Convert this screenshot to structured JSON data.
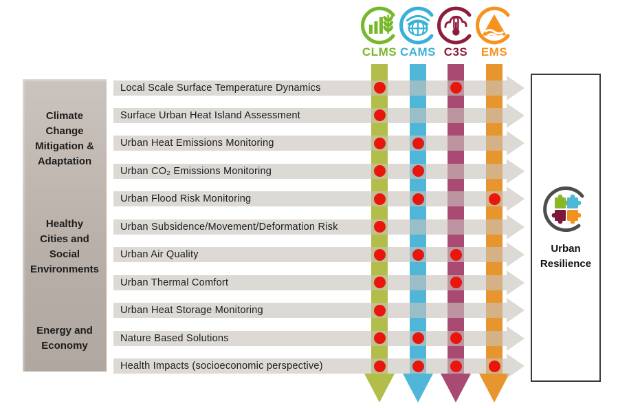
{
  "services": [
    {
      "id": "CLMS",
      "label": "CLMS",
      "icon": "clms-land-monitoring-icon",
      "label_color": "#76b82a",
      "bar_color": "#b3bd4a"
    },
    {
      "id": "CAMS",
      "label": "CAMS",
      "icon": "cams-atmosphere-monitoring-icon",
      "label_color": "#38b1d8",
      "bar_color": "#4fb6d8"
    },
    {
      "id": "C3S",
      "label": "C3S",
      "icon": "c3s-climate-change-icon",
      "label_color": "#8e1c3c",
      "bar_color": "#a84a71"
    },
    {
      "id": "EMS",
      "label": "EMS",
      "icon": "ems-emergency-management-icon",
      "label_color": "#f6921e",
      "bar_color": "#e6952f"
    }
  ],
  "sidebar": {
    "groups": [
      {
        "label": "Climate\nChange\nMitigation &\nAdaptation"
      },
      {
        "label": "Healthy\nCities and\nSocial\nEnvironments"
      },
      {
        "label": "Energy and\nEconomy"
      }
    ]
  },
  "rows": [
    {
      "label": "Local Scale Surface Temperature Dynamics",
      "services": [
        "CLMS",
        "C3S"
      ]
    },
    {
      "label": "Surface Urban Heat Island Assessment",
      "services": [
        "CLMS"
      ]
    },
    {
      "label": "Urban Heat Emissions Monitoring",
      "services": [
        "CLMS",
        "CAMS"
      ]
    },
    {
      "label": "Urban CO₂ Emissions Monitoring",
      "services": [
        "CLMS",
        "CAMS"
      ]
    },
    {
      "label": "Urban Flood Risk Monitoring",
      "services": [
        "CLMS",
        "CAMS",
        "EMS"
      ]
    },
    {
      "label": "Urban Subsidence/Movement/Deformation Risk",
      "services": [
        "CLMS"
      ]
    },
    {
      "label": "Urban Air Quality",
      "services": [
        "CLMS",
        "CAMS",
        "C3S"
      ]
    },
    {
      "label": "Urban Thermal Comfort",
      "services": [
        "CLMS",
        "C3S"
      ]
    },
    {
      "label": "Urban Heat Storage Monitoring",
      "services": [
        "CLMS"
      ]
    },
    {
      "label": "Nature Based Solutions",
      "services": [
        "CLMS",
        "CAMS",
        "C3S"
      ]
    },
    {
      "label": "Health Impacts (socioeconomic perspective)",
      "services": [
        "CLMS",
        "CAMS",
        "C3S",
        "EMS"
      ]
    }
  ],
  "outcome": {
    "label": "Urban\nResilience",
    "icon": "urban-resilience-puzzle-icon"
  },
  "colors": {
    "dot_red": "#e8160d",
    "arrow_gray": "#dedad6",
    "sidebar_taupe": "#bcb3ac",
    "crescent_gray": "#4d4d4d",
    "text": "#1c1c1c"
  }
}
